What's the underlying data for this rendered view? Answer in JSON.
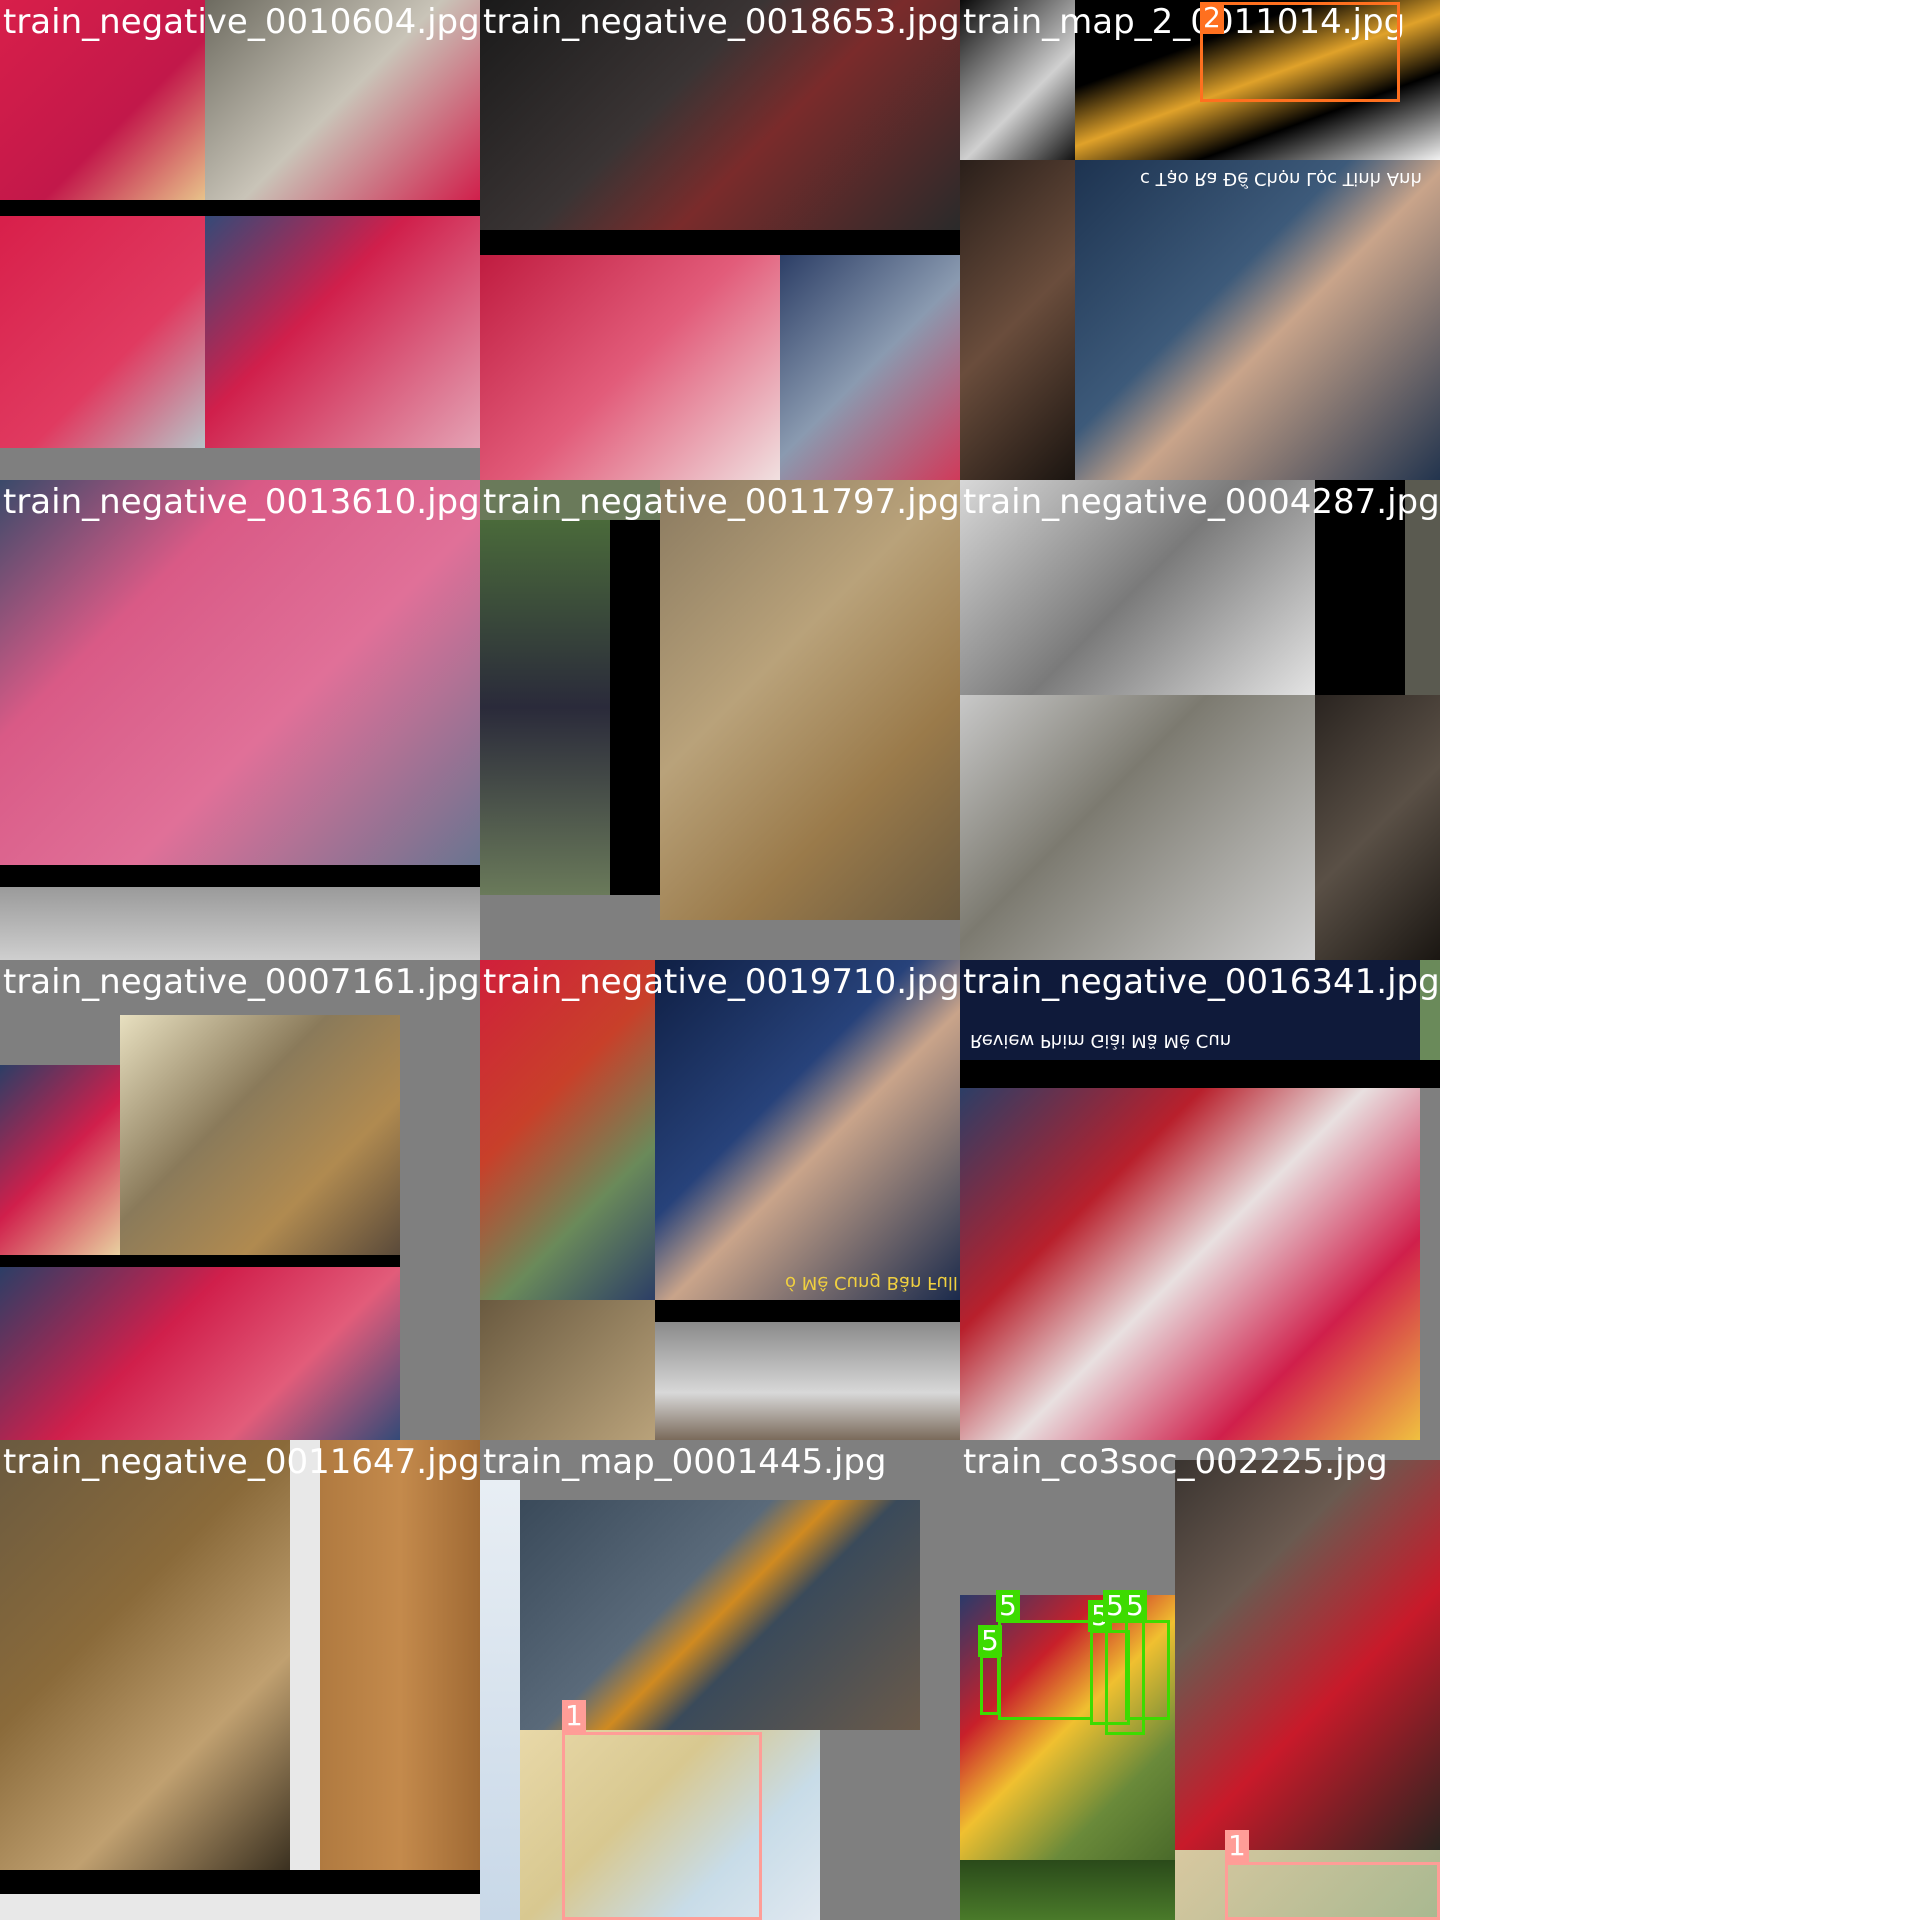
{
  "captions": [
    "train_negative_0010604.jpg",
    "train_negative_0018653.jpg",
    "train_map_2_0011014.jpg",
    "train_negative_0013610.jpg",
    "train_negative_0011797.jpg",
    "train_negative_0004287.jpg",
    "train_negative_0007161.jpg",
    "train_negative_0019710.jpg",
    "train_negative_0016341.jpg",
    "train_negative_0011647.jpg",
    "train_map_0001445.jpg",
    "train_co3soc_002225.jpg"
  ],
  "colors": {
    "class_1": "#ff9d97",
    "class_2": "#ff701f",
    "class_5": "#3ddb00"
  },
  "labels": {
    "tile3_box": "2",
    "tile11_box": "1",
    "tile12_box_a": "5",
    "tile12_box_b": "5",
    "tile12_box_c": "5",
    "tile12_box_d": "5",
    "tile12_box_e": "5",
    "tile12_box_f": "1"
  },
  "overlay_texts": {
    "tile3_subtitle": "c Tạo Ra Để Chọn Lọc Tinh Anh",
    "tile8_subtitle": "ó Mê Cung Bản Full",
    "tile9_subtitle": "Review Phim Giải Mã Mê Cun"
  }
}
